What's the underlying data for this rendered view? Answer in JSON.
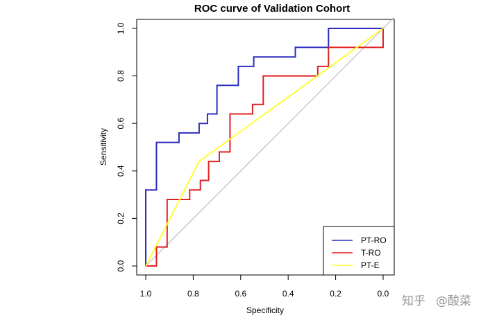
{
  "chart_data": {
    "type": "line",
    "title": "ROC curve of Validation Cohort",
    "xlabel": "Specificity",
    "ylabel": "Sensitivity",
    "xlim": [
      1.0,
      0.0
    ],
    "ylim": [
      0.0,
      1.0
    ],
    "x_reversed": true,
    "x_ticks": [
      1.0,
      0.8,
      0.6,
      0.4,
      0.2,
      0.0
    ],
    "x_tick_labels": [
      "1.0",
      "0.8",
      "0.6",
      "0.4",
      "0.2",
      "0.0"
    ],
    "y_ticks": [
      0.0,
      0.2,
      0.4,
      0.6,
      0.8,
      1.0
    ],
    "y_tick_labels": [
      "0.0",
      "0.2",
      "0.4",
      "0.6",
      "0.8",
      "1.0"
    ],
    "grid": false,
    "legend": "bottom-right",
    "reference_line": {
      "from": [
        1.0,
        0.0
      ],
      "to": [
        0.0,
        1.0
      ],
      "color": "#b0b0b0"
    },
    "series": [
      {
        "name": "PT-RO",
        "color": "#2b2bbf",
        "points": [
          [
            1.0,
            0.0
          ],
          [
            1.0,
            0.32
          ],
          [
            0.955,
            0.32
          ],
          [
            0.955,
            0.52
          ],
          [
            0.86,
            0.52
          ],
          [
            0.86,
            0.56
          ],
          [
            0.775,
            0.56
          ],
          [
            0.775,
            0.6
          ],
          [
            0.74,
            0.6
          ],
          [
            0.74,
            0.64
          ],
          [
            0.7,
            0.64
          ],
          [
            0.7,
            0.76
          ],
          [
            0.61,
            0.76
          ],
          [
            0.61,
            0.84
          ],
          [
            0.545,
            0.84
          ],
          [
            0.545,
            0.88
          ],
          [
            0.37,
            0.88
          ],
          [
            0.37,
            0.92
          ],
          [
            0.23,
            0.92
          ],
          [
            0.23,
            1.0
          ],
          [
            0.0,
            1.0
          ]
        ]
      },
      {
        "name": "T-RO",
        "color": "#e02020",
        "points": [
          [
            1.0,
            0.0
          ],
          [
            0.955,
            0.0
          ],
          [
            0.955,
            0.08
          ],
          [
            0.91,
            0.08
          ],
          [
            0.91,
            0.28
          ],
          [
            0.815,
            0.28
          ],
          [
            0.815,
            0.32
          ],
          [
            0.77,
            0.32
          ],
          [
            0.77,
            0.36
          ],
          [
            0.735,
            0.36
          ],
          [
            0.735,
            0.44
          ],
          [
            0.69,
            0.44
          ],
          [
            0.69,
            0.48
          ],
          [
            0.645,
            0.48
          ],
          [
            0.645,
            0.64
          ],
          [
            0.55,
            0.64
          ],
          [
            0.55,
            0.68
          ],
          [
            0.505,
            0.68
          ],
          [
            0.505,
            0.8
          ],
          [
            0.275,
            0.8
          ],
          [
            0.275,
            0.84
          ],
          [
            0.23,
            0.84
          ],
          [
            0.23,
            0.92
          ],
          [
            0.0,
            0.92
          ],
          [
            0.0,
            1.0
          ]
        ]
      },
      {
        "name": "PT-E",
        "color": "#ffff33",
        "points": [
          [
            1.0,
            0.0
          ],
          [
            0.775,
            0.44
          ],
          [
            0.0,
            1.0
          ]
        ]
      }
    ]
  },
  "watermark": {
    "brand": "知乎",
    "handle": "@酸菜"
  }
}
